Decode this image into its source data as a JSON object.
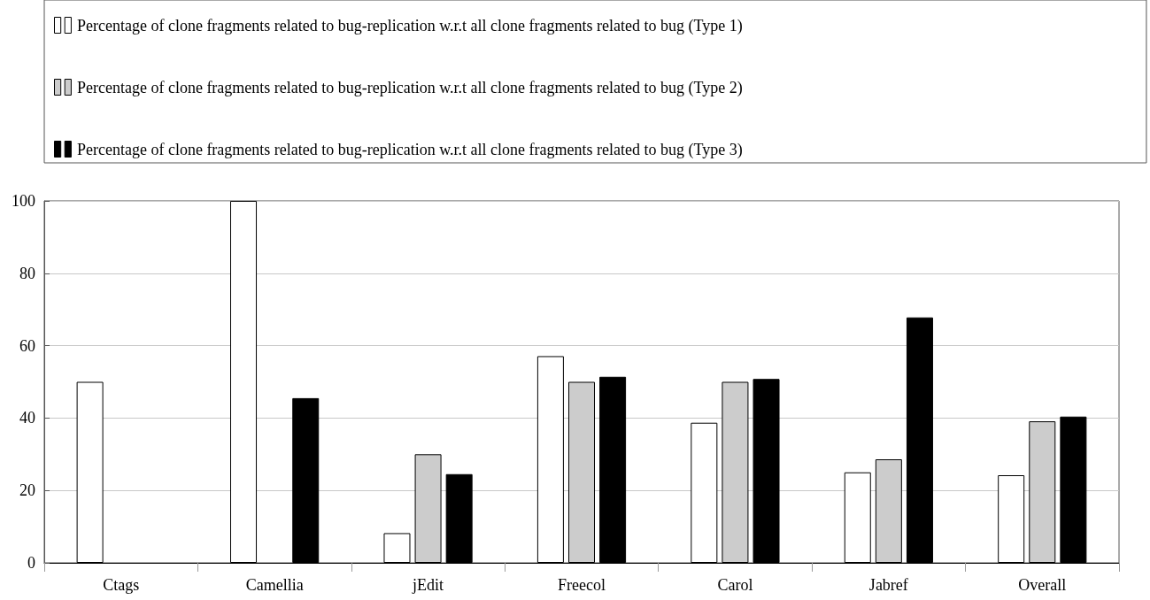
{
  "chart_data": {
    "type": "bar",
    "categories": [
      "Ctags",
      "Camellia",
      "jEdit",
      "Freecol",
      "Carol",
      "Jabref",
      "Overall"
    ],
    "series": [
      {
        "name": "Percentage of clone fragments related to bug-replication w.r.t all clone fragments related to bug (Type 1)",
        "color": "#ffffff",
        "values": [
          50,
          100,
          8.2,
          57.1,
          38.7,
          25.0,
          24.2
        ]
      },
      {
        "name": "Percentage of clone fragments related to bug-replication w.r.t all clone fragments related to bug (Type 2)",
        "color": "#cccccc",
        "values": [
          null,
          null,
          30,
          50,
          50,
          28.6,
          39.1
        ]
      },
      {
        "name": "Percentage of clone fragments related to bug-replication w.r.t all clone fragments related to bug (Type 3)",
        "color": "#000000",
        "values": [
          null,
          45.5,
          24.5,
          51.4,
          50.8,
          67.8,
          40.4
        ]
      }
    ],
    "ylim": [
      0,
      100
    ],
    "yticks": [
      0,
      20,
      40,
      60,
      80,
      100
    ],
    "grid": "y",
    "legend": "top"
  }
}
